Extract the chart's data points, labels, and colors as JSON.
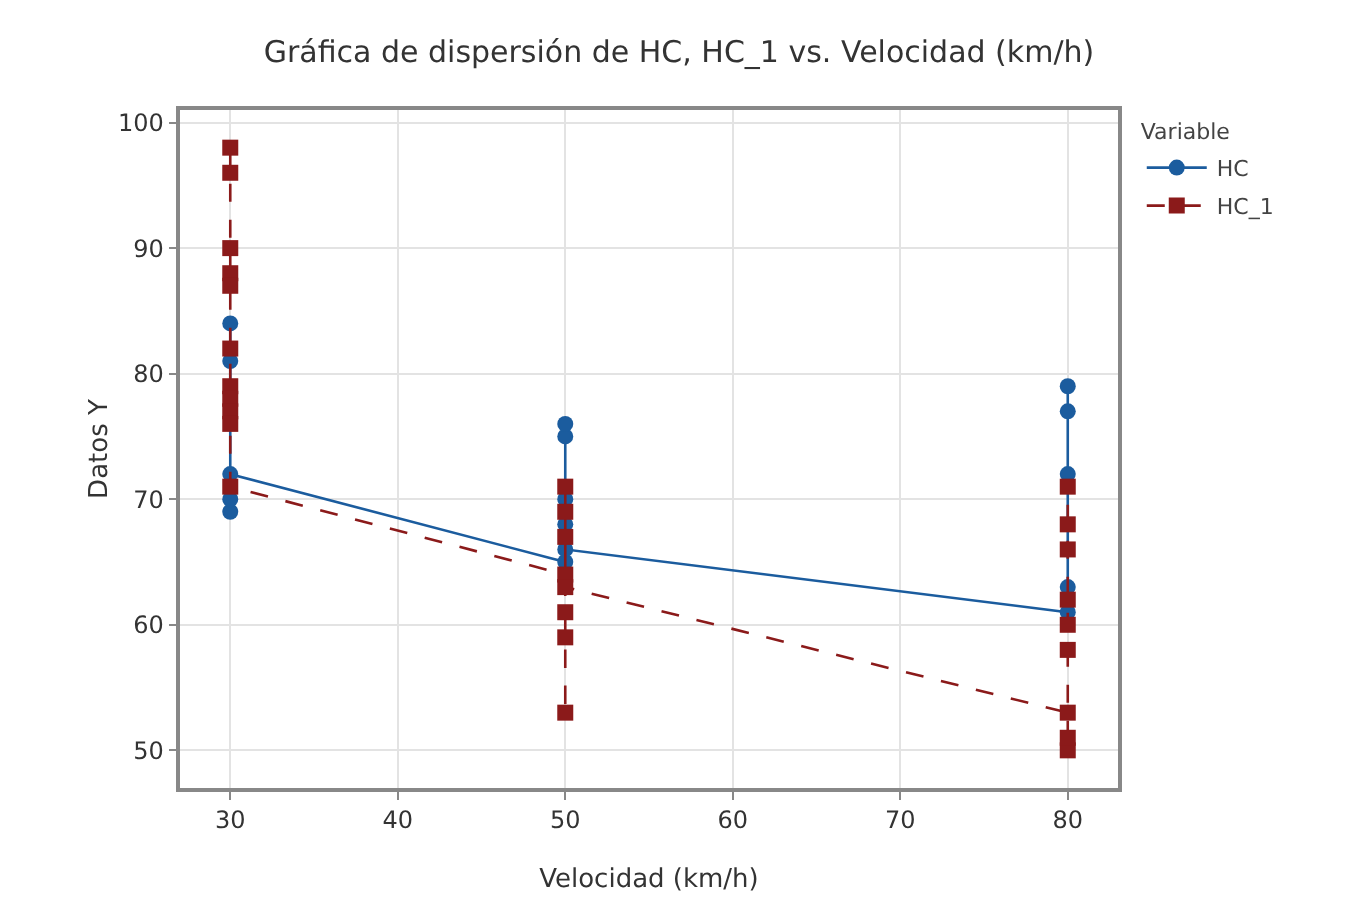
{
  "chart_data": {
    "type": "line",
    "title": "Gráfica de dispersión de HC, HC_1 vs. Velocidad (km/h)",
    "xlabel": "Velocidad (km/h)",
    "ylabel": "Datos Y",
    "legend_title": "Variable",
    "legend": "top right",
    "grid": true,
    "xlim": [
      27,
      83
    ],
    "xticks": [
      30,
      40,
      50,
      60,
      70,
      80
    ],
    "ylim": [
      47,
      101
    ],
    "yticks": [
      50,
      60,
      70,
      80,
      90,
      100
    ],
    "series": [
      {
        "name": "HC",
        "color": "#1b5c9e",
        "marker": "circle",
        "line_style": "solid",
        "x": [
          30,
          30,
          30,
          30,
          30,
          50,
          50,
          50,
          50,
          50,
          50,
          80,
          80,
          80,
          80,
          80
        ],
        "values": [
          84,
          81,
          69,
          70,
          72,
          65,
          68,
          70,
          75,
          76,
          66,
          61,
          63,
          72,
          77,
          79
        ]
      },
      {
        "name": "HC_1",
        "color": "#8b1a1a",
        "marker": "square",
        "line_style": "dashed",
        "x": [
          30,
          30,
          30,
          30,
          30,
          30,
          30,
          30,
          30,
          30,
          30,
          50,
          50,
          50,
          50,
          50,
          50,
          50,
          50,
          80,
          80,
          80,
          80,
          80,
          80,
          80,
          80,
          80
        ],
        "values": [
          98,
          96,
          90,
          88,
          87,
          82,
          79,
          78,
          77,
          76,
          71,
          64,
          67,
          69,
          71,
          61,
          59,
          53,
          63,
          53,
          50,
          51,
          58,
          60,
          62,
          66,
          68,
          71
        ]
      }
    ]
  }
}
